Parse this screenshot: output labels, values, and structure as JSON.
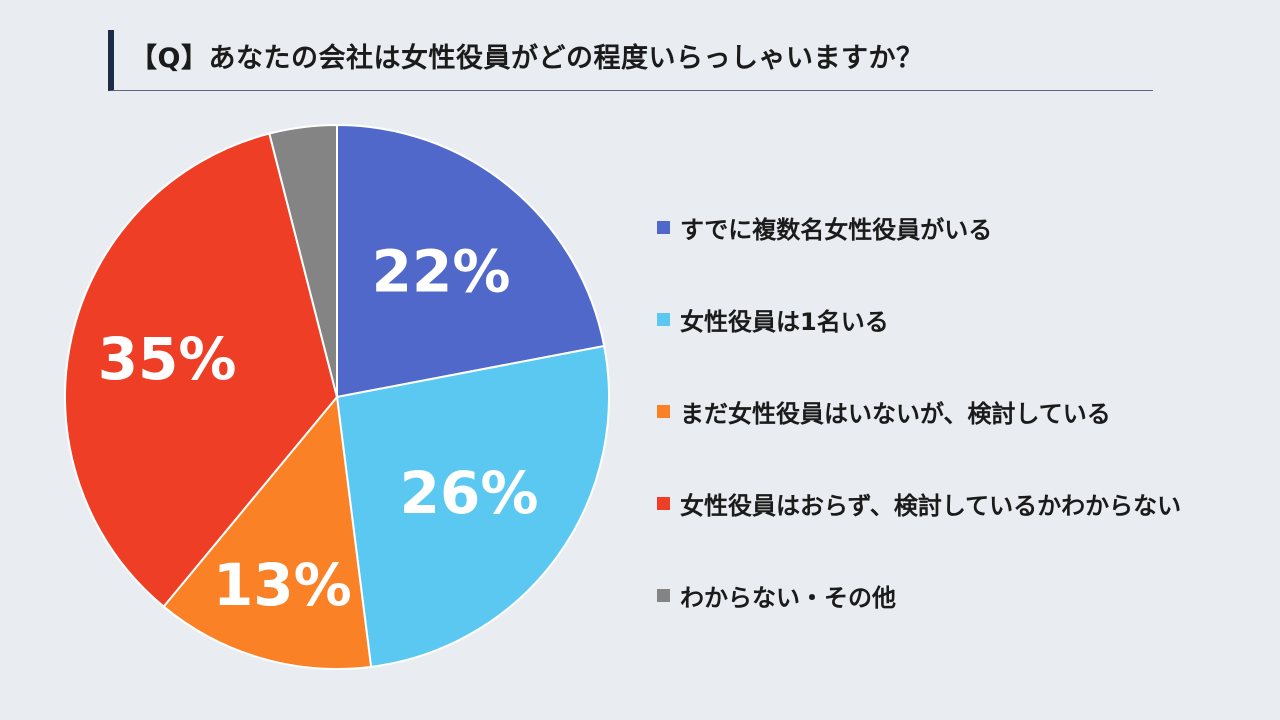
{
  "title": "【Q】あなたの会社は女性役員がどの程度いらっしゃいますか？",
  "chart_data": {
    "type": "pie",
    "slices": [
      {
        "name": "すでに複数名女性役員がいる",
        "value": 22,
        "label": "22%",
        "color": "#4f68c9"
      },
      {
        "name": "女性役員は1名いる",
        "value": 26,
        "label": "26%",
        "color": "#5bc8f1"
      },
      {
        "name": "まだ女性役員はいないが、検討している",
        "value": 13,
        "label": "13%",
        "color": "#fa8125"
      },
      {
        "name": "女性役員はおらず、検討しているかわからない",
        "value": 35,
        "label": "35%",
        "color": "#ee3f26"
      },
      {
        "name": "わからない・その他",
        "value": 4,
        "label": "",
        "color": "#848484"
      }
    ],
    "start_angle": "12 o'clock",
    "direction": "clockwise",
    "legend_position": "right"
  }
}
